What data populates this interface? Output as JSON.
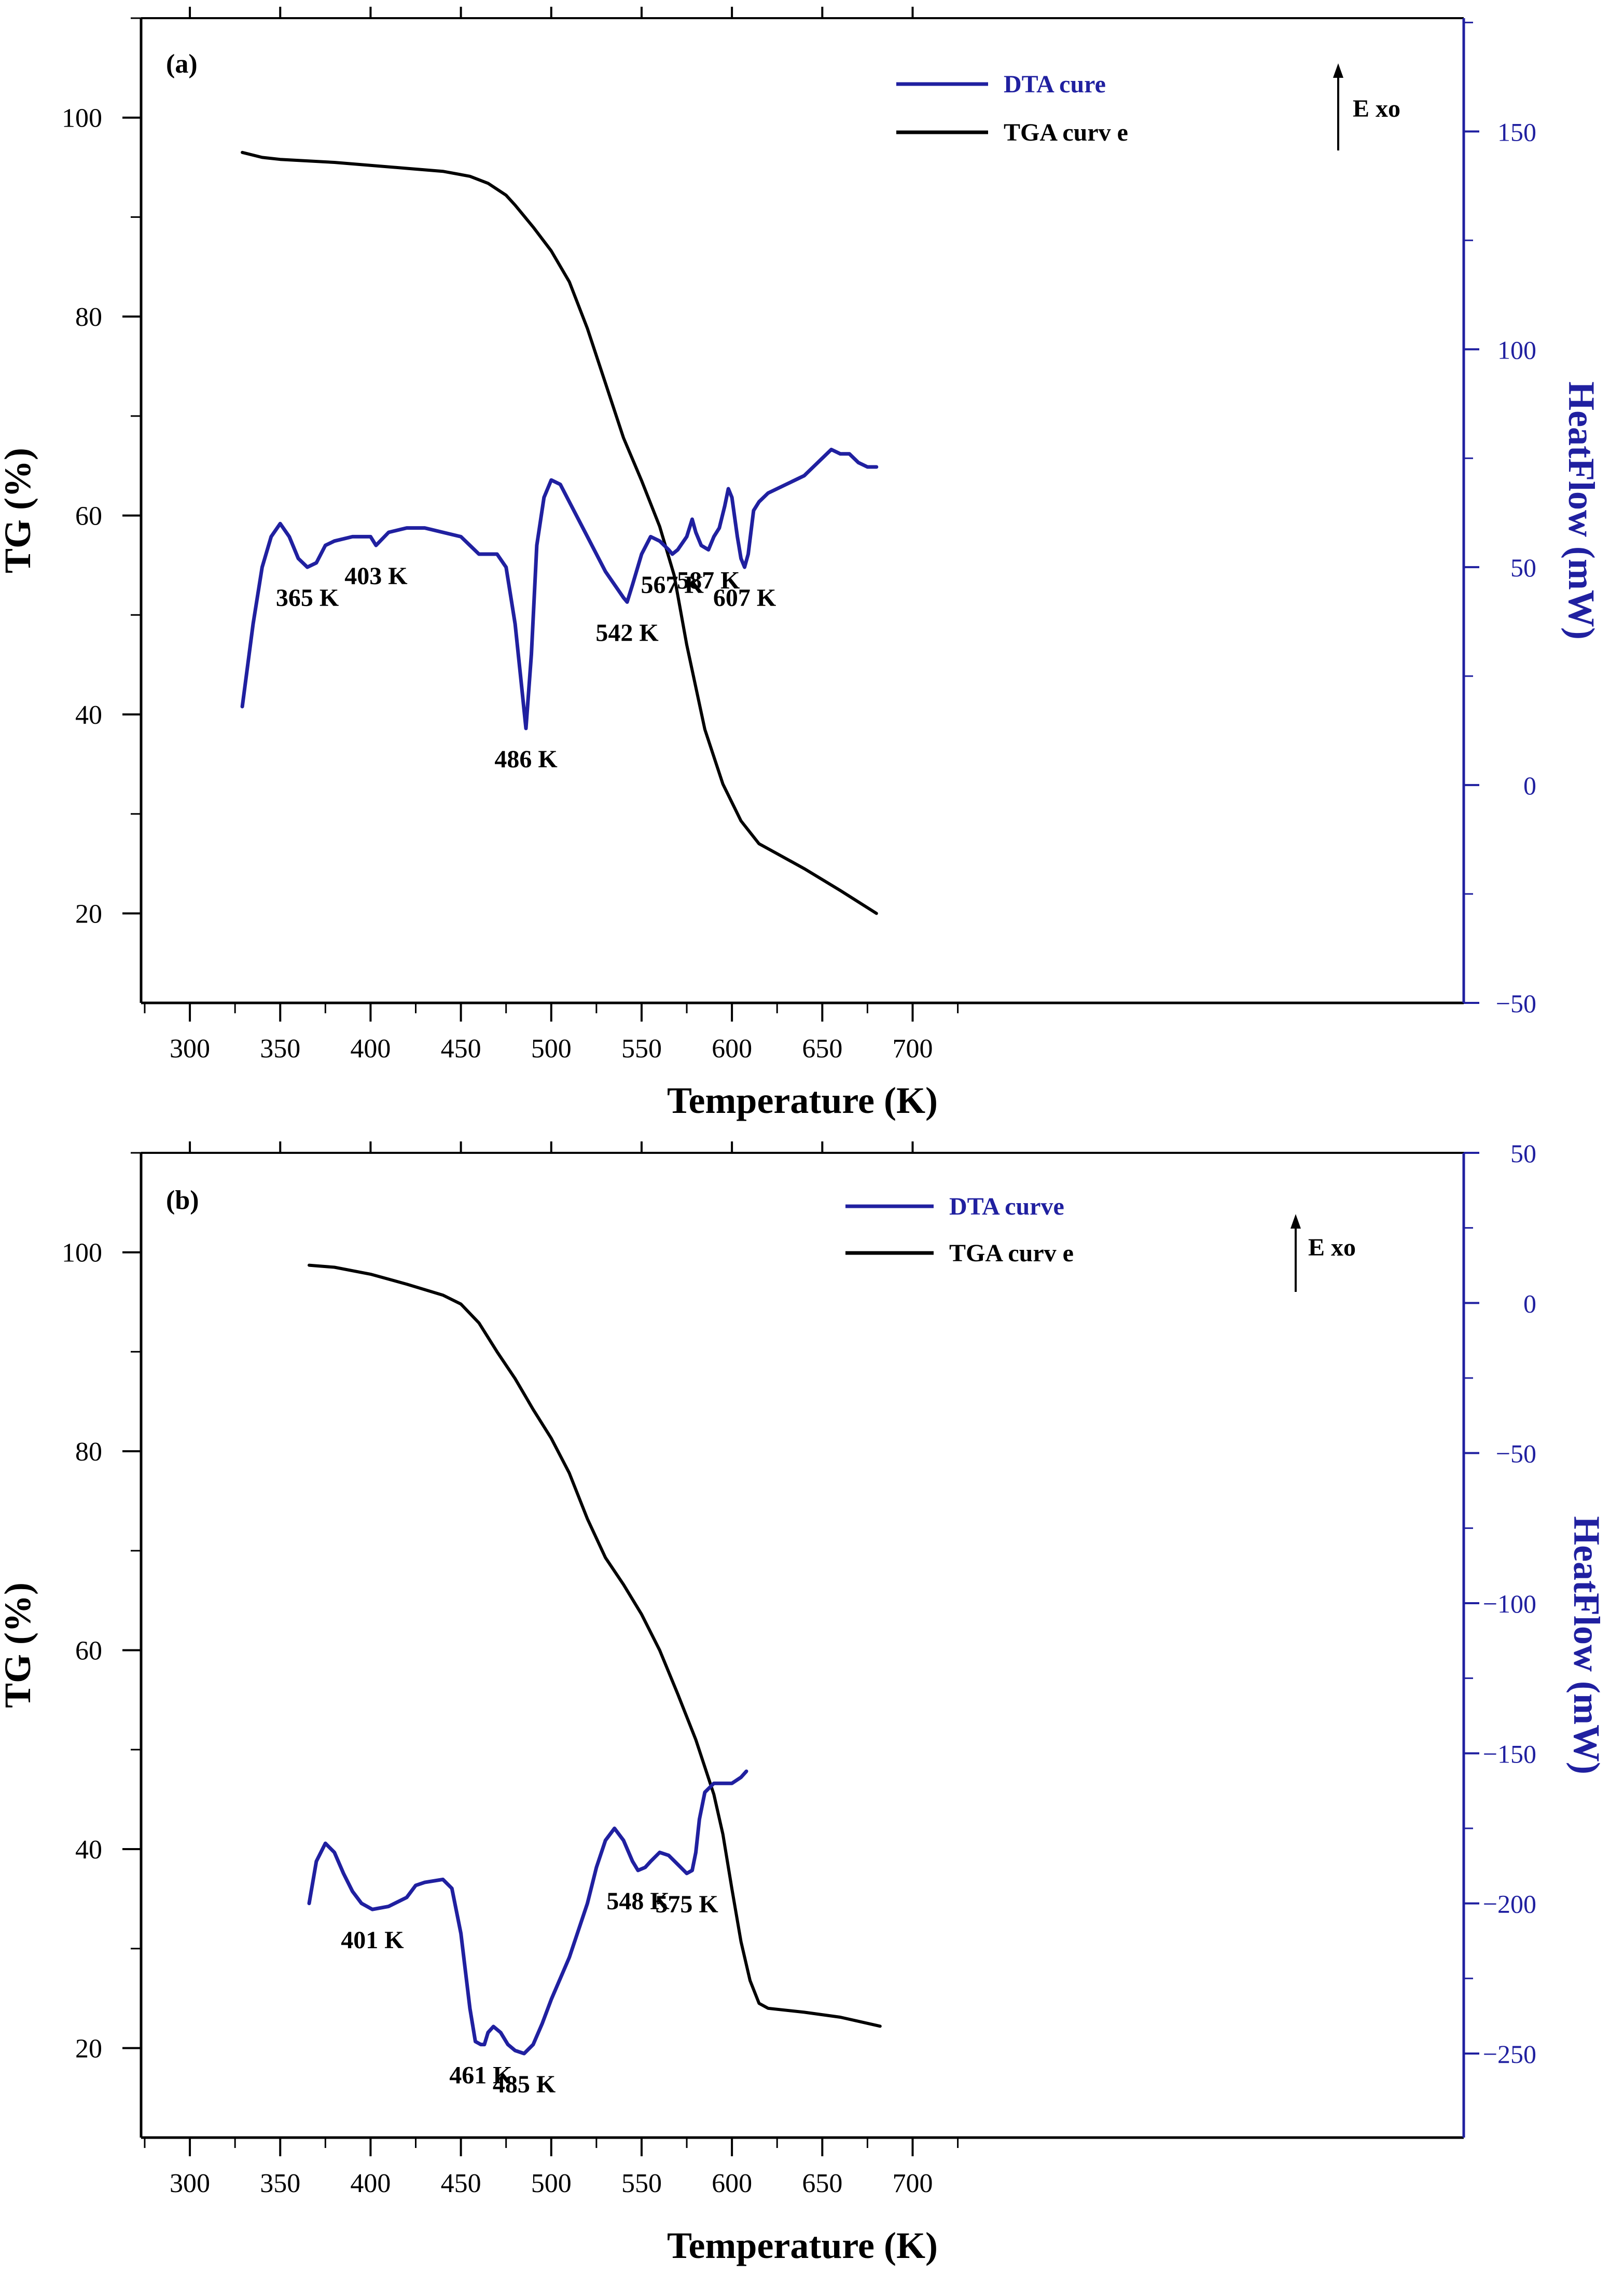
{
  "chart_data": [
    {
      "type": "line",
      "panel_label": "(a)",
      "xlabel": "Temperature (K)",
      "ylabel_left": "TG (%)",
      "ylabel_right": "HeatFlow (mW)",
      "xlim": [
        273,
        1005
      ],
      "x_ticks": [
        300,
        350,
        400,
        450,
        500,
        550,
        600,
        650,
        700
      ],
      "ylim_left": [
        11,
        110
      ],
      "y_ticks_left": [
        20,
        40,
        60,
        80,
        100
      ],
      "ylim_right": [
        -50,
        176
      ],
      "y_ticks_right": [
        -50,
        0,
        50,
        100,
        150
      ],
      "legend": {
        "position": "top-right",
        "entries": [
          "DTA cure",
          "TGA curv e"
        ]
      },
      "exo_label": "E xo",
      "series": [
        {
          "name": "TGA curv e",
          "axis": "left",
          "color": "#000000",
          "x": [
            329,
            340,
            350,
            380,
            400,
            420,
            440,
            455,
            465,
            475,
            480,
            490,
            500,
            510,
            520,
            530,
            540,
            550,
            560,
            568,
            575,
            585,
            595,
            605,
            615,
            625,
            640,
            660,
            680
          ],
          "y": [
            96.5,
            96,
            95.8,
            95.5,
            95.2,
            94.9,
            94.6,
            94.1,
            93.4,
            92.2,
            91.2,
            89,
            86.6,
            83.5,
            78.8,
            73.3,
            67.8,
            63.5,
            58.9,
            54,
            47,
            38.5,
            33,
            29.3,
            27,
            26,
            24.5,
            22.3,
            20
          ]
        },
        {
          "name": "DTA cure",
          "axis": "right",
          "color": "#2020a0",
          "x": [
            329,
            335,
            340,
            345,
            350,
            355,
            360,
            365,
            370,
            375,
            380,
            390,
            400,
            403,
            410,
            420,
            430,
            440,
            450,
            455,
            460,
            470,
            475,
            480,
            483,
            486,
            489,
            492,
            496,
            500,
            505,
            510,
            520,
            530,
            540,
            542,
            545,
            550,
            555,
            560,
            565,
            567,
            570,
            575,
            578,
            580,
            583,
            587,
            590,
            593,
            596,
            598,
            600,
            603,
            605,
            607,
            609,
            612,
            615,
            620,
            630,
            640,
            645,
            650,
            655,
            660,
            665,
            670,
            675,
            680
          ],
          "y": [
            18,
            37,
            50,
            57,
            60,
            57,
            52,
            50,
            51,
            55,
            56,
            57,
            57,
            55,
            58,
            59,
            59,
            58,
            57,
            55,
            53,
            53,
            50,
            37,
            25,
            13,
            30,
            55,
            66,
            70,
            69,
            65,
            57,
            49,
            43,
            42,
            46,
            53,
            57,
            56,
            54,
            53,
            54,
            57,
            61,
            58,
            55,
            54,
            57,
            59,
            64,
            68,
            66,
            57,
            52,
            50,
            53,
            63,
            65,
            67,
            69,
            71,
            73,
            75,
            77,
            76,
            76,
            74,
            73,
            73
          ]
        }
      ],
      "annotations": [
        {
          "text": "365 K",
          "x": 365,
          "y_right": 50
        },
        {
          "text": "403 K",
          "x": 403,
          "y_right": 55
        },
        {
          "text": "486 K",
          "x": 486,
          "y_right": 13
        },
        {
          "text": "542 K",
          "x": 542,
          "y_right": 42
        },
        {
          "text": "567 K",
          "x": 567,
          "y_right": 53
        },
        {
          "text": "587 K",
          "x": 587,
          "y_right": 54
        },
        {
          "text": "607 K",
          "x": 607,
          "y_right": 50
        }
      ]
    },
    {
      "type": "line",
      "panel_label": "(b)",
      "xlabel": "Temperature (K)",
      "ylabel_left": "TG (%)",
      "ylabel_right": "HeatFlow (mW)",
      "xlim": [
        273,
        1005
      ],
      "x_ticks": [
        300,
        350,
        400,
        450,
        500,
        550,
        600,
        650,
        700
      ],
      "ylim_left": [
        11,
        110
      ],
      "y_ticks_left": [
        20,
        40,
        60,
        80,
        100
      ],
      "ylim_right": [
        -278,
        50
      ],
      "y_ticks_right": [
        -250,
        -200,
        -150,
        -100,
        -50,
        0,
        50
      ],
      "legend": {
        "position": "top-right",
        "entries": [
          "DTA curve",
          "TGA curv e"
        ]
      },
      "exo_label": "E xo",
      "series": [
        {
          "name": "TGA curv e",
          "axis": "left",
          "color": "#000000",
          "x": [
            366,
            380,
            400,
            420,
            440,
            450,
            460,
            470,
            480,
            490,
            500,
            510,
            520,
            530,
            540,
            550,
            560,
            570,
            580,
            590,
            595,
            600,
            605,
            610,
            615,
            620,
            640,
            660,
            682
          ],
          "y": [
            98.7,
            98.5,
            97.8,
            96.8,
            95.7,
            94.8,
            92.9,
            90,
            87.3,
            84.2,
            81.3,
            77.8,
            73.2,
            69.3,
            66.6,
            63.6,
            60,
            55.6,
            51,
            45.5,
            41.5,
            36,
            30.7,
            26.8,
            24.5,
            24,
            23.6,
            23.1,
            22.2
          ]
        },
        {
          "name": "DTA curve",
          "axis": "right",
          "color": "#2020a0",
          "x": [
            366,
            370,
            375,
            380,
            385,
            390,
            395,
            401,
            410,
            420,
            425,
            430,
            440,
            445,
            450,
            455,
            458,
            461,
            463,
            465,
            468,
            472,
            476,
            480,
            485,
            490,
            495,
            500,
            510,
            520,
            525,
            530,
            535,
            540,
            545,
            548,
            552,
            555,
            560,
            565,
            570,
            575,
            578,
            580,
            582,
            585,
            590,
            595,
            600,
            605,
            608
          ],
          "y": [
            -200,
            -186,
            -180,
            -183,
            -190,
            -196,
            -200,
            -202,
            -201,
            -198,
            -194,
            -193,
            -192,
            -195,
            -210,
            -235,
            -246,
            -247,
            -247,
            -243,
            -241,
            -243,
            -247,
            -249,
            -250,
            -247,
            -240,
            -232,
            -218,
            -200,
            -188,
            -179,
            -175,
            -179,
            -186,
            -189,
            -188,
            -186,
            -183,
            -184,
            -187,
            -190,
            -189,
            -183,
            -172,
            -163,
            -160,
            -160,
            -160,
            -158,
            -156
          ]
        }
      ],
      "annotations": [
        {
          "text": "401 K",
          "x": 401,
          "y_right": -202
        },
        {
          "text": "461 K",
          "x": 461,
          "y_right": -247
        },
        {
          "text": "485 K",
          "x": 485,
          "y_right": -250
        },
        {
          "text": "548 K",
          "x": 548,
          "y_right": -189
        },
        {
          "text": "575 K",
          "x": 575,
          "y_right": -190
        }
      ]
    }
  ]
}
